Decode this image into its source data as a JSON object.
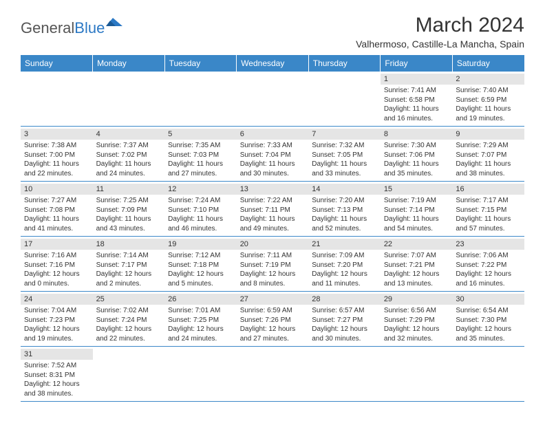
{
  "brand": {
    "part1": "General",
    "part2": "Blue"
  },
  "title": "March 2024",
  "location": "Valhermoso, Castille-La Mancha, Spain",
  "accent_color": "#3a87c8",
  "day_header_bg": "#e5e5e5",
  "weekdays": [
    "Sunday",
    "Monday",
    "Tuesday",
    "Wednesday",
    "Thursday",
    "Friday",
    "Saturday"
  ],
  "weeks": [
    [
      null,
      null,
      null,
      null,
      null,
      {
        "n": "1",
        "sunrise": "7:41 AM",
        "sunset": "6:58 PM",
        "daylight": "11 hours and 16 minutes."
      },
      {
        "n": "2",
        "sunrise": "7:40 AM",
        "sunset": "6:59 PM",
        "daylight": "11 hours and 19 minutes."
      }
    ],
    [
      {
        "n": "3",
        "sunrise": "7:38 AM",
        "sunset": "7:00 PM",
        "daylight": "11 hours and 22 minutes."
      },
      {
        "n": "4",
        "sunrise": "7:37 AM",
        "sunset": "7:02 PM",
        "daylight": "11 hours and 24 minutes."
      },
      {
        "n": "5",
        "sunrise": "7:35 AM",
        "sunset": "7:03 PM",
        "daylight": "11 hours and 27 minutes."
      },
      {
        "n": "6",
        "sunrise": "7:33 AM",
        "sunset": "7:04 PM",
        "daylight": "11 hours and 30 minutes."
      },
      {
        "n": "7",
        "sunrise": "7:32 AM",
        "sunset": "7:05 PM",
        "daylight": "11 hours and 33 minutes."
      },
      {
        "n": "8",
        "sunrise": "7:30 AM",
        "sunset": "7:06 PM",
        "daylight": "11 hours and 35 minutes."
      },
      {
        "n": "9",
        "sunrise": "7:29 AM",
        "sunset": "7:07 PM",
        "daylight": "11 hours and 38 minutes."
      }
    ],
    [
      {
        "n": "10",
        "sunrise": "7:27 AM",
        "sunset": "7:08 PM",
        "daylight": "11 hours and 41 minutes."
      },
      {
        "n": "11",
        "sunrise": "7:25 AM",
        "sunset": "7:09 PM",
        "daylight": "11 hours and 43 minutes."
      },
      {
        "n": "12",
        "sunrise": "7:24 AM",
        "sunset": "7:10 PM",
        "daylight": "11 hours and 46 minutes."
      },
      {
        "n": "13",
        "sunrise": "7:22 AM",
        "sunset": "7:11 PM",
        "daylight": "11 hours and 49 minutes."
      },
      {
        "n": "14",
        "sunrise": "7:20 AM",
        "sunset": "7:13 PM",
        "daylight": "11 hours and 52 minutes."
      },
      {
        "n": "15",
        "sunrise": "7:19 AM",
        "sunset": "7:14 PM",
        "daylight": "11 hours and 54 minutes."
      },
      {
        "n": "16",
        "sunrise": "7:17 AM",
        "sunset": "7:15 PM",
        "daylight": "11 hours and 57 minutes."
      }
    ],
    [
      {
        "n": "17",
        "sunrise": "7:16 AM",
        "sunset": "7:16 PM",
        "daylight": "12 hours and 0 minutes."
      },
      {
        "n": "18",
        "sunrise": "7:14 AM",
        "sunset": "7:17 PM",
        "daylight": "12 hours and 2 minutes."
      },
      {
        "n": "19",
        "sunrise": "7:12 AM",
        "sunset": "7:18 PM",
        "daylight": "12 hours and 5 minutes."
      },
      {
        "n": "20",
        "sunrise": "7:11 AM",
        "sunset": "7:19 PM",
        "daylight": "12 hours and 8 minutes."
      },
      {
        "n": "21",
        "sunrise": "7:09 AM",
        "sunset": "7:20 PM",
        "daylight": "12 hours and 11 minutes."
      },
      {
        "n": "22",
        "sunrise": "7:07 AM",
        "sunset": "7:21 PM",
        "daylight": "12 hours and 13 minutes."
      },
      {
        "n": "23",
        "sunrise": "7:06 AM",
        "sunset": "7:22 PM",
        "daylight": "12 hours and 16 minutes."
      }
    ],
    [
      {
        "n": "24",
        "sunrise": "7:04 AM",
        "sunset": "7:23 PM",
        "daylight": "12 hours and 19 minutes."
      },
      {
        "n": "25",
        "sunrise": "7:02 AM",
        "sunset": "7:24 PM",
        "daylight": "12 hours and 22 minutes."
      },
      {
        "n": "26",
        "sunrise": "7:01 AM",
        "sunset": "7:25 PM",
        "daylight": "12 hours and 24 minutes."
      },
      {
        "n": "27",
        "sunrise": "6:59 AM",
        "sunset": "7:26 PM",
        "daylight": "12 hours and 27 minutes."
      },
      {
        "n": "28",
        "sunrise": "6:57 AM",
        "sunset": "7:27 PM",
        "daylight": "12 hours and 30 minutes."
      },
      {
        "n": "29",
        "sunrise": "6:56 AM",
        "sunset": "7:29 PM",
        "daylight": "12 hours and 32 minutes."
      },
      {
        "n": "30",
        "sunrise": "6:54 AM",
        "sunset": "7:30 PM",
        "daylight": "12 hours and 35 minutes."
      }
    ],
    [
      {
        "n": "31",
        "sunrise": "7:52 AM",
        "sunset": "8:31 PM",
        "daylight": "12 hours and 38 minutes."
      },
      null,
      null,
      null,
      null,
      null,
      null
    ]
  ],
  "labels": {
    "sunrise": "Sunrise:",
    "sunset": "Sunset:",
    "daylight": "Daylight:"
  }
}
